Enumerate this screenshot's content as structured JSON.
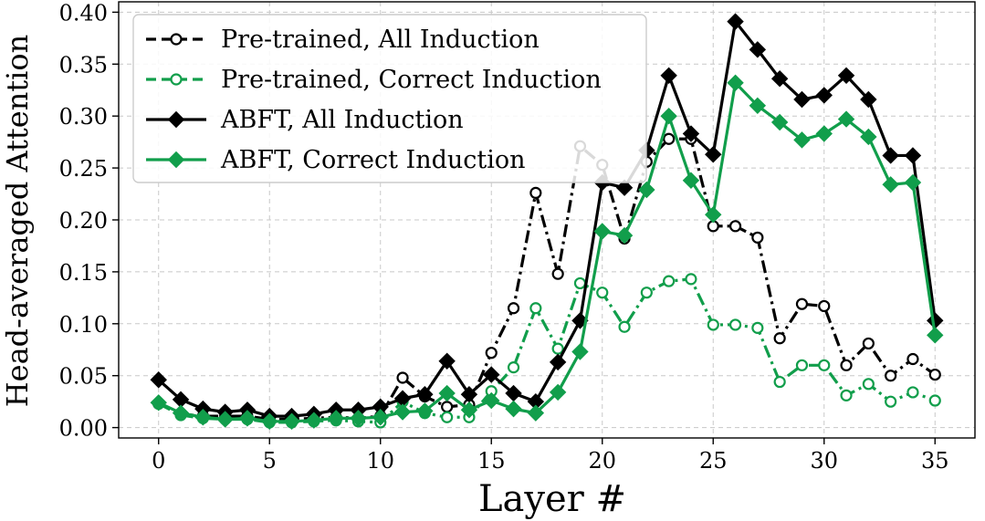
{
  "chart_data": {
    "type": "line",
    "xlabel": "Layer #",
    "ylabel": "Head-averaged Attention",
    "xlim": [
      -1.8,
      36.8
    ],
    "ylim": [
      -0.01,
      0.41
    ],
    "xticks": [
      0,
      5,
      10,
      15,
      20,
      25,
      30,
      35
    ],
    "yticks": [
      0.0,
      0.05,
      0.1,
      0.15,
      0.2,
      0.25,
      0.3,
      0.35,
      0.4
    ],
    "xtick_labels": [
      "0",
      "5",
      "10",
      "15",
      "20",
      "25",
      "30",
      "35"
    ],
    "ytick_labels": [
      "0.00",
      "0.05",
      "0.10",
      "0.15",
      "0.20",
      "0.25",
      "0.30",
      "0.35",
      "0.40"
    ],
    "grid": true,
    "legend_position": "top-left",
    "x": [
      0,
      1,
      2,
      3,
      4,
      5,
      6,
      7,
      8,
      9,
      10,
      11,
      12,
      13,
      14,
      15,
      16,
      17,
      18,
      19,
      20,
      21,
      22,
      23,
      24,
      25,
      26,
      27,
      28,
      29,
      30,
      31,
      32,
      33,
      34,
      35
    ],
    "series": [
      {
        "name": "Pre-trained, All Induction",
        "color": "#000000",
        "line_style": "dash-dot",
        "legend_line_style": "dashed",
        "marker": "open-circle",
        "values": [
          0.023,
          0.013,
          0.011,
          0.011,
          0.011,
          0.008,
          0.008,
          0.009,
          0.01,
          0.009,
          0.011,
          0.048,
          0.03,
          0.02,
          0.022,
          0.072,
          0.115,
          0.226,
          0.148,
          0.271,
          0.253,
          0.182,
          0.256,
          0.278,
          0.278,
          0.194,
          0.194,
          0.183,
          0.086,
          0.119,
          0.117,
          0.06,
          0.081,
          0.05,
          0.066,
          0.051
        ]
      },
      {
        "name": "Pre-trained, Correct Induction",
        "color": "#119e4b",
        "line_style": "dash-dot",
        "legend_line_style": "dashed",
        "marker": "open-circle",
        "values": [
          0.023,
          0.012,
          0.009,
          0.008,
          0.008,
          0.005,
          0.005,
          0.006,
          0.007,
          0.006,
          0.005,
          0.025,
          0.014,
          0.01,
          0.01,
          0.035,
          0.058,
          0.115,
          0.076,
          0.139,
          0.13,
          0.097,
          0.13,
          0.141,
          0.143,
          0.099,
          0.099,
          0.096,
          0.044,
          0.06,
          0.06,
          0.031,
          0.042,
          0.025,
          0.034,
          0.026
        ]
      },
      {
        "name": "ABFT, All Induction",
        "color": "#000000",
        "line_style": "solid",
        "legend_line_style": "solid",
        "marker": "diamond",
        "values": [
          0.046,
          0.027,
          0.018,
          0.015,
          0.017,
          0.011,
          0.011,
          0.013,
          0.017,
          0.017,
          0.02,
          0.028,
          0.032,
          0.064,
          0.032,
          0.051,
          0.033,
          0.025,
          0.063,
          0.103,
          0.236,
          0.231,
          0.267,
          0.339,
          0.283,
          0.263,
          0.391,
          0.364,
          0.336,
          0.316,
          0.32,
          0.339,
          0.316,
          0.262,
          0.262,
          0.103
        ]
      },
      {
        "name": "ABFT, Correct Induction",
        "color": "#119e4b",
        "line_style": "solid",
        "legend_line_style": "solid",
        "marker": "diamond",
        "values": [
          0.024,
          0.014,
          0.01,
          0.008,
          0.009,
          0.006,
          0.006,
          0.007,
          0.009,
          0.009,
          0.01,
          0.015,
          0.016,
          0.033,
          0.017,
          0.026,
          0.018,
          0.014,
          0.034,
          0.073,
          0.189,
          0.185,
          0.229,
          0.3,
          0.238,
          0.205,
          0.332,
          0.31,
          0.294,
          0.277,
          0.283,
          0.297,
          0.28,
          0.234,
          0.236,
          0.089
        ]
      }
    ]
  }
}
